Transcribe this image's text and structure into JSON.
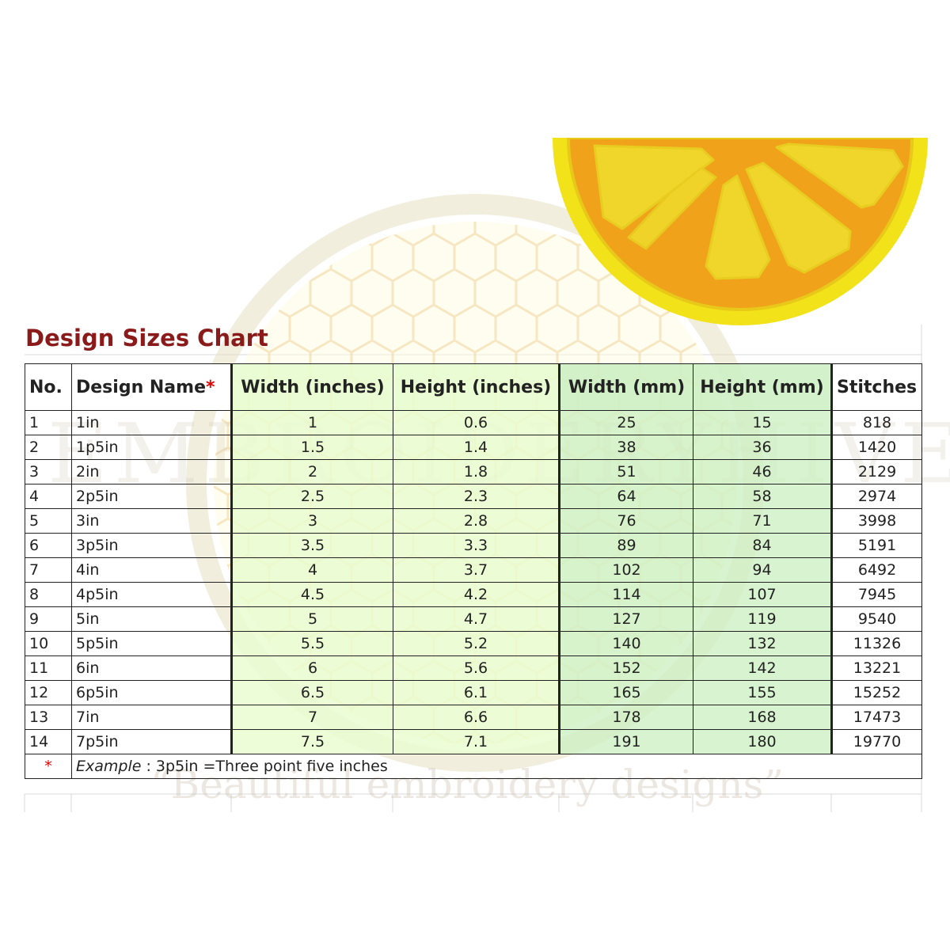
{
  "title": "Design Sizes Chart",
  "watermark": {
    "brand": "EMBROIDERYHIVE",
    "tagline": "“Beautiful embroidery designs”"
  },
  "table": {
    "headers": {
      "no": "No.",
      "design_name": "Design Name",
      "design_name_mark": "*",
      "width_in": "Width (inches)",
      "height_in": "Height (inches)",
      "width_mm": "Width (mm)",
      "height_mm": "Height (mm)",
      "stitches": "Stitches"
    },
    "rows": [
      {
        "no": "1",
        "name": "1in",
        "w_in": "1",
        "h_in": "0.6",
        "w_mm": "25",
        "h_mm": "15",
        "stitches": "818"
      },
      {
        "no": "2",
        "name": "1p5in",
        "w_in": "1.5",
        "h_in": "1.4",
        "w_mm": "38",
        "h_mm": "36",
        "stitches": "1420"
      },
      {
        "no": "3",
        "name": "2in",
        "w_in": "2",
        "h_in": "1.8",
        "w_mm": "51",
        "h_mm": "46",
        "stitches": "2129"
      },
      {
        "no": "4",
        "name": "2p5in",
        "w_in": "2.5",
        "h_in": "2.3",
        "w_mm": "64",
        "h_mm": "58",
        "stitches": "2974"
      },
      {
        "no": "5",
        "name": "3in",
        "w_in": "3",
        "h_in": "2.8",
        "w_mm": "76",
        "h_mm": "71",
        "stitches": "3998"
      },
      {
        "no": "6",
        "name": "3p5in",
        "w_in": "3.5",
        "h_in": "3.3",
        "w_mm": "89",
        "h_mm": "84",
        "stitches": "5191"
      },
      {
        "no": "7",
        "name": "4in",
        "w_in": "4",
        "h_in": "3.7",
        "w_mm": "102",
        "h_mm": "94",
        "stitches": "6492"
      },
      {
        "no": "8",
        "name": "4p5in",
        "w_in": "4.5",
        "h_in": "4.2",
        "w_mm": "114",
        "h_mm": "107",
        "stitches": "7945"
      },
      {
        "no": "9",
        "name": "5in",
        "w_in": "5",
        "h_in": "4.7",
        "w_mm": "127",
        "h_mm": "119",
        "stitches": "9540"
      },
      {
        "no": "10",
        "name": "5p5in",
        "w_in": "5.5",
        "h_in": "5.2",
        "w_mm": "140",
        "h_mm": "132",
        "stitches": "11326"
      },
      {
        "no": "11",
        "name": "6in",
        "w_in": "6",
        "h_in": "5.6",
        "w_mm": "152",
        "h_mm": "142",
        "stitches": "13221"
      },
      {
        "no": "12",
        "name": "6p5in",
        "w_in": "6.5",
        "h_in": "6.1",
        "w_mm": "165",
        "h_mm": "155",
        "stitches": "15252"
      },
      {
        "no": "13",
        "name": "7in",
        "w_in": "7",
        "h_in": "6.6",
        "w_mm": "178",
        "h_mm": "168",
        "stitches": "17473"
      },
      {
        "no": "14",
        "name": "7p5in",
        "w_in": "7.5",
        "h_in": "7.1",
        "w_mm": "191",
        "h_mm": "180",
        "stitches": "19770"
      }
    ],
    "note": {
      "mark": "*",
      "label": "Example",
      "text": " : 3p5in =Three point five inches"
    }
  },
  "colors": {
    "title": "#8b1a1a",
    "asterisk": "#e00000",
    "inch_columns": "#e8fcd0",
    "mm_columns": "#cef0c4",
    "lemon_rind": "#f5e020",
    "lemon_flesh": "#f5a020"
  },
  "image": {
    "icon": "lemon-slice-embroidery"
  }
}
